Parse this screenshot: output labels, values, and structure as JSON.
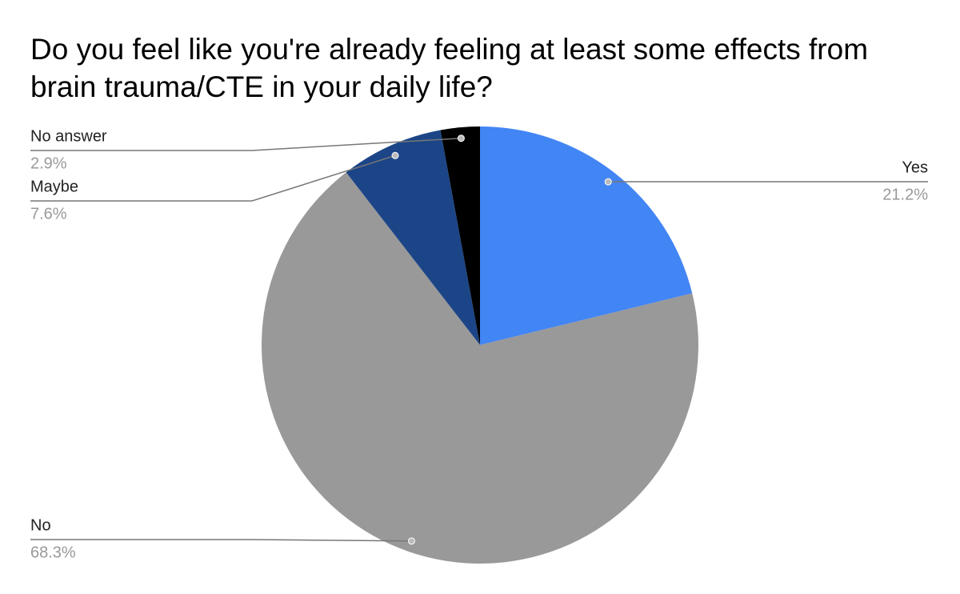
{
  "chart_data": {
    "type": "pie",
    "title": "Do you feel like you're already feeling at least some effects from brain trauma/CTE in your daily life?",
    "categories": [
      "Yes",
      "No",
      "Maybe",
      "No answer"
    ],
    "values": [
      21.2,
      68.3,
      7.6,
      2.9
    ],
    "value_labels": [
      "21.2%",
      "68.3%",
      "7.6%",
      "2.9%"
    ],
    "colors": [
      "#4285f4",
      "#999999",
      "#1c4587",
      "#000000"
    ]
  }
}
